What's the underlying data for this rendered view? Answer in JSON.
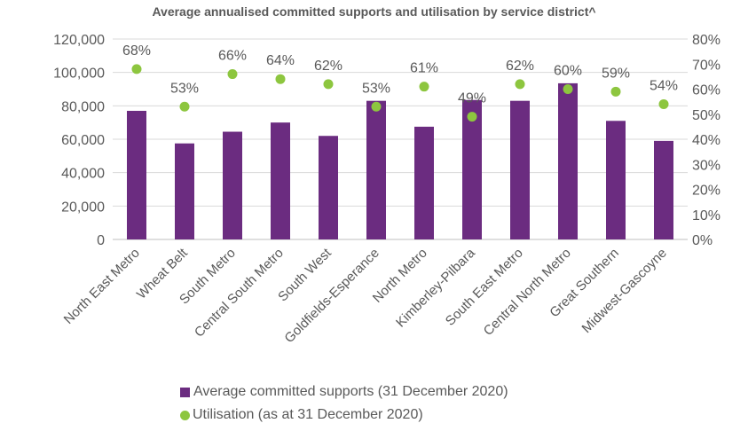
{
  "chart_data": {
    "type": "bar",
    "title": "Average annualised committed supports and utilisation by service district^",
    "categories": [
      "North East Metro",
      "Wheat Belt",
      "South Metro",
      "Central South Metro",
      "South West",
      "Goldfields-Esperance",
      "North Metro",
      "Kimberley-Pilbara",
      "South East Metro",
      "Central North Metro",
      "Great Southern",
      "Midwest-Gascoyne"
    ],
    "series": [
      {
        "name": "Average committed supports (31 December 2020)",
        "axis": "left",
        "mark": "bar",
        "color": "#6B2C80",
        "values": [
          77000,
          57500,
          64500,
          70000,
          62000,
          83000,
          67500,
          83500,
          83000,
          93500,
          71000,
          59000
        ]
      },
      {
        "name": "Utilisation (as at 31 December 2020)",
        "axis": "right",
        "mark": "point",
        "color": "#8DC63F",
        "values": [
          68,
          53,
          66,
          64,
          62,
          53,
          61,
          49,
          62,
          60,
          59,
          54
        ],
        "labels": [
          "68%",
          "53%",
          "66%",
          "64%",
          "62%",
          "53%",
          "61%",
          "49%",
          "62%",
          "60%",
          "59%",
          "54%"
        ]
      }
    ],
    "y_left": {
      "range": [
        0,
        120000
      ],
      "ticks": [
        "0",
        "20,000",
        "40,000",
        "60,000",
        "80,000",
        "100,000",
        "120,000"
      ]
    },
    "y_right": {
      "range": [
        0,
        80
      ],
      "ticks": [
        "0%",
        "10%",
        "20%",
        "30%",
        "40%",
        "50%",
        "60%",
        "70%",
        "80%"
      ]
    },
    "grid": true,
    "legend_position": "bottom"
  }
}
